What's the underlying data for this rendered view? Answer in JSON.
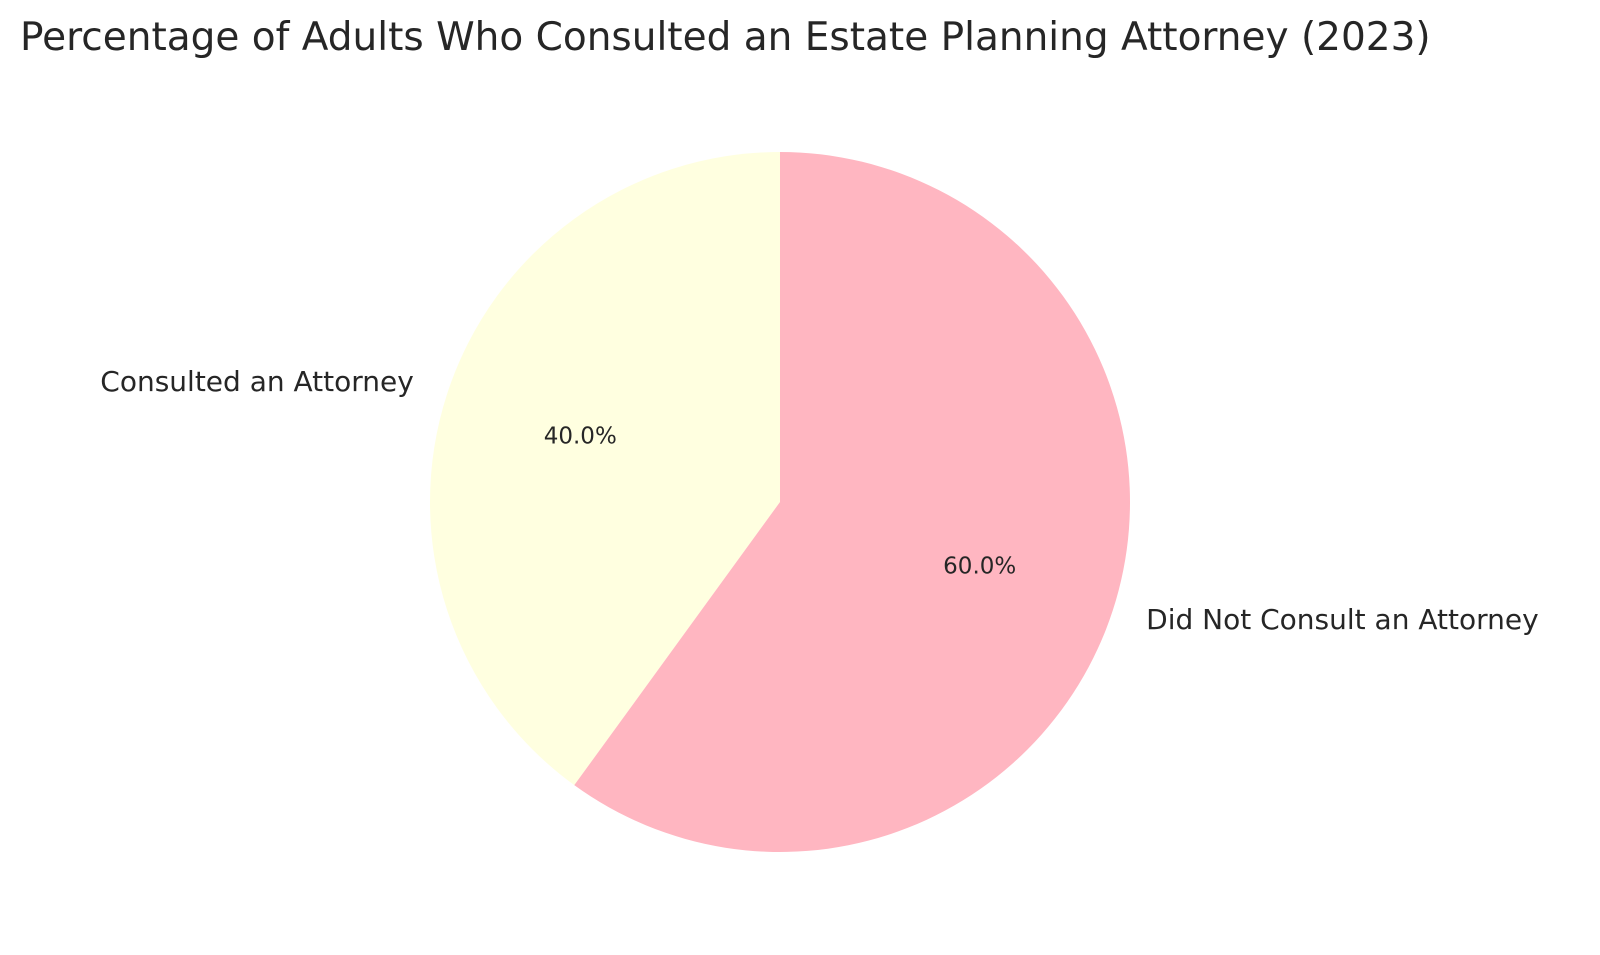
{
  "chart_data": {
    "type": "pie",
    "title": "Percentage of Adults Who Consulted an Estate Planning Attorney (2023)",
    "categories": [
      "Consulted an Attorney",
      "Did Not Consult an Attorney"
    ],
    "values": [
      40.0,
      60.0
    ],
    "percent_labels": [
      "40.0%",
      "60.0%"
    ],
    "colors": [
      "#FFFFE0",
      "#FFB6C1"
    ],
    "start_angle_deg": 90,
    "direction": "counterclockwise",
    "legend": "none"
  }
}
